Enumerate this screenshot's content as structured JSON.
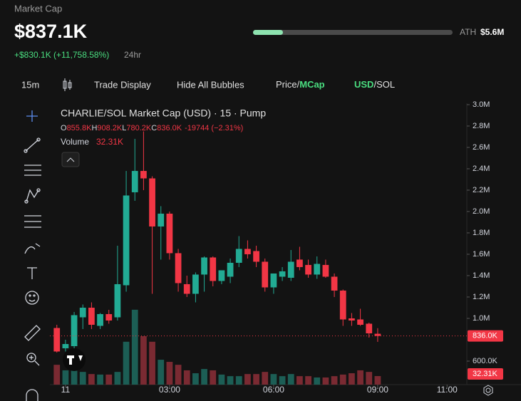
{
  "header": {
    "label": "Market Cap",
    "value": "$837.1K",
    "ath_label": "ATH",
    "ath_value": "$5.6M",
    "change": "+$830.1K (+11,758.58%)",
    "period": "24hr"
  },
  "toolbar": {
    "interval": "15m",
    "trade_display": "Trade Display",
    "bubbles": "Hide All Bubbles",
    "price_toggle": {
      "off": "Price/",
      "on": "MCap"
    },
    "currency_toggle": {
      "on": "USD",
      "off": "/SOL"
    }
  },
  "legend": {
    "title": "CHARLIE/SOL Market Cap (USD) · 15 · Pump",
    "ohlc": [
      {
        "key": "O",
        "value": "855.8K"
      },
      {
        "key": "H",
        "value": "908.2K"
      },
      {
        "key": "L",
        "value": "780.2K"
      },
      {
        "key": "C",
        "value": "836.0K"
      }
    ],
    "change": "-19744 (−2.31%)",
    "volume_label": "Volume",
    "volume_value": "32.31K"
  },
  "chart_data": {
    "type": "candlestick",
    "x": [
      -0.25,
      0,
      0.25,
      0.5,
      0.75,
      1,
      1.25,
      1.5,
      1.75,
      2,
      2.25,
      2.5,
      2.75,
      3,
      3.25,
      3.5,
      3.75,
      4,
      4.25,
      4.5,
      4.75,
      5,
      5.25,
      5.5,
      5.75,
      6,
      6.25,
      6.5,
      6.75,
      7,
      7.25,
      7.5,
      7.75,
      8,
      8.25,
      8.5,
      8.75,
      9
    ],
    "open": [
      910000,
      720000,
      740000,
      1010000,
      1100000,
      930000,
      1040000,
      1010000,
      1310000,
      2180000,
      2380000,
      2310000,
      1860000,
      1980000,
      1610000,
      1320000,
      1230000,
      1410000,
      1570000,
      1350000,
      1390000,
      1520000,
      1650000,
      1630000,
      1530000,
      1290000,
      1390000,
      1380000,
      1550000,
      1500000,
      1410000,
      1500000,
      1390000,
      1260000,
      1000000,
      990000,
      950000,
      855800
    ],
    "high": [
      940000,
      800000,
      1060000,
      1130000,
      1150000,
      1050000,
      1080000,
      1680000,
      2380000,
      2680000,
      2750000,
      2330000,
      2050000,
      2000000,
      1650000,
      1400000,
      1430000,
      1580000,
      1580000,
      1450000,
      1560000,
      1770000,
      1730000,
      1680000,
      1560000,
      1420000,
      1480000,
      1640000,
      1670000,
      1550000,
      1580000,
      1550000,
      1420000,
      1270000,
      1050000,
      1090000,
      960000,
      908200
    ],
    "low": [
      680000,
      690000,
      720000,
      900000,
      900000,
      900000,
      950000,
      980000,
      1250000,
      2100000,
      2200000,
      1230000,
      1550000,
      1550000,
      1250000,
      1200000,
      1150000,
      1250000,
      1300000,
      1320000,
      1330000,
      1480000,
      1560000,
      1480000,
      1250000,
      1230000,
      1350000,
      1350000,
      1450000,
      1380000,
      1370000,
      1380000,
      1200000,
      930000,
      930000,
      930000,
      820000,
      780200
    ],
    "close": [
      690000,
      760000,
      1030000,
      1100000,
      940000,
      1040000,
      980000,
      1320000,
      2150000,
      2380000,
      2310000,
      1860000,
      1980000,
      1610000,
      1330000,
      1230000,
      1410000,
      1570000,
      1350000,
      1450000,
      1520000,
      1650000,
      1600000,
      1530000,
      1290000,
      1420000,
      1440000,
      1530000,
      1480000,
      1410000,
      1510000,
      1390000,
      1260000,
      990000,
      980000,
      940000,
      860000,
      836000
    ],
    "volume": [
      75000,
      54000,
      59000,
      48000,
      40000,
      38000,
      38000,
      48000,
      162000,
      283000,
      183000,
      162000,
      94000,
      86000,
      75000,
      54000,
      43000,
      59000,
      54000,
      38000,
      32000,
      32000,
      40000,
      40000,
      48000,
      40000,
      32000,
      40000,
      32000,
      32000,
      27000,
      27000,
      32000,
      38000,
      43000,
      54000,
      48000,
      32310
    ],
    "up_color": "#22ab94",
    "down_color": "#f23645",
    "volume_up_color": "#1c5e55",
    "volume_down_color": "#7a2a32",
    "xlim": [
      -0.45,
      11.57
    ],
    "xticks": [
      {
        "value": 0,
        "label": "11"
      },
      {
        "value": 3,
        "label": "03:00"
      },
      {
        "value": 6,
        "label": "06:00"
      },
      {
        "value": 9,
        "label": "09:00"
      },
      {
        "value": 11,
        "label": "11:00"
      }
    ],
    "ylim": [
      380000,
      3013000
    ],
    "yticks": [
      {
        "value": 3000000,
        "label": "3.0M"
      },
      {
        "value": 2800000,
        "label": "2.8M"
      },
      {
        "value": 2600000,
        "label": "2.6M"
      },
      {
        "value": 2400000,
        "label": "2.4M"
      },
      {
        "value": 2200000,
        "label": "2.2M"
      },
      {
        "value": 2000000,
        "label": "2.0M"
      },
      {
        "value": 1800000,
        "label": "1.8M"
      },
      {
        "value": 1600000,
        "label": "1.6M"
      },
      {
        "value": 1400000,
        "label": "1.4M"
      },
      {
        "value": 1200000,
        "label": "1.2M"
      },
      {
        "value": 1000000,
        "label": "1.0M"
      },
      {
        "value": 600000,
        "label": "600.0K"
      }
    ],
    "vlim": [
      0,
      1063000
    ],
    "last_price_label": "836.0K",
    "last_volume_label": "32.31K",
    "grid": false
  }
}
